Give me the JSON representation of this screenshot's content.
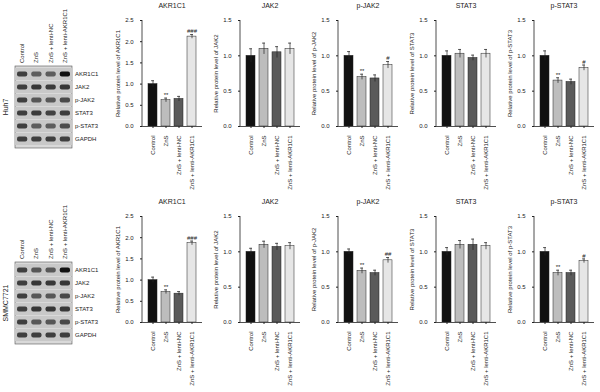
{
  "chart_data": [
    {
      "type": "bar",
      "title": "AKR1C1",
      "y_label": "Relative protein level of AKR1C1",
      "categories": [
        "Control",
        "ZnS",
        "ZnS + lenti-NC",
        "ZnS + lenti-AKR1C1"
      ],
      "values": [
        1.0,
        0.62,
        0.65,
        2.12
      ],
      "errors": [
        0.08,
        0.05,
        0.06,
        0.05
      ],
      "annotations": [
        null,
        "**",
        null,
        "###"
      ],
      "colors": [
        "#111111",
        "#bdbdbd",
        "#5a5a5a",
        "#e6e6e6"
      ],
      "ylim": [
        0,
        2.5
      ],
      "yticks": [
        {
          "value": 0,
          "label": "0.0"
        },
        {
          "value": 0.5,
          "label": "0.5"
        },
        {
          "value": 1,
          "label": "1.0"
        },
        {
          "value": 1.5,
          "label": "1.5"
        },
        {
          "value": 2,
          "label": "2.0"
        },
        {
          "value": 2.5,
          "label": "2.5"
        }
      ]
    },
    {
      "type": "bar",
      "title": "JAK2",
      "y_label": "Relative protein level of JAK2",
      "categories": [
        "Control",
        "ZnS",
        "ZnS + lenti-NC",
        "ZnS + lenti-AKR1C1"
      ],
      "values": [
        1.0,
        1.1,
        1.05,
        1.1
      ],
      "errors": [
        0.1,
        0.08,
        0.08,
        0.08
      ],
      "annotations": [
        null,
        null,
        null,
        null
      ],
      "colors": [
        "#111111",
        "#bdbdbd",
        "#5a5a5a",
        "#e6e6e6"
      ],
      "ylim": [
        0,
        1.5
      ],
      "yticks": [
        {
          "value": 0,
          "label": "0.0"
        },
        {
          "value": 0.5,
          "label": "0.5"
        },
        {
          "value": 1,
          "label": "1.0"
        },
        {
          "value": 1.5,
          "label": "1.5"
        }
      ]
    },
    {
      "type": "bar",
      "title": "p-JAK2",
      "y_label": "Relative protein level of p-JAK2",
      "categories": [
        "Control",
        "ZnS",
        "ZnS + lenti-NC",
        "ZnS + lenti-AKR1C1"
      ],
      "values": [
        1.0,
        0.7,
        0.68,
        0.87
      ],
      "errors": [
        0.06,
        0.04,
        0.05,
        0.05
      ],
      "annotations": [
        null,
        "**",
        null,
        "#"
      ],
      "colors": [
        "#111111",
        "#bdbdbd",
        "#5a5a5a",
        "#e6e6e6"
      ],
      "ylim": [
        0,
        1.5
      ],
      "yticks": [
        {
          "value": 0,
          "label": "0.0"
        },
        {
          "value": 0.5,
          "label": "0.5"
        },
        {
          "value": 1,
          "label": "1.0"
        },
        {
          "value": 1.5,
          "label": "1.5"
        }
      ]
    },
    {
      "type": "bar",
      "title": "STAT3",
      "y_label": "Relative protein level of STAT3",
      "categories": [
        "Control",
        "ZnS",
        "ZnS + lenti-NC",
        "ZnS + lenti-AKR1C1"
      ],
      "values": [
        1.0,
        1.03,
        0.97,
        1.03
      ],
      "errors": [
        0.07,
        0.06,
        0.04,
        0.06
      ],
      "annotations": [
        null,
        null,
        null,
        null
      ],
      "colors": [
        "#111111",
        "#bdbdbd",
        "#5a5a5a",
        "#e6e6e6"
      ],
      "ylim": [
        0,
        1.5
      ],
      "yticks": [
        {
          "value": 0,
          "label": "0.0"
        },
        {
          "value": 0.5,
          "label": "0.5"
        },
        {
          "value": 1,
          "label": "1.0"
        },
        {
          "value": 1.5,
          "label": "1.5"
        }
      ]
    },
    {
      "type": "bar",
      "title": "p-STAT3",
      "y_label": "Relative protein level of p-STAT3",
      "categories": [
        "Control",
        "ZnS",
        "ZnS + lenti-NC",
        "ZnS + lenti-AKR1C1"
      ],
      "values": [
        1.0,
        0.65,
        0.63,
        0.83
      ],
      "errors": [
        0.07,
        0.04,
        0.04,
        0.04
      ],
      "annotations": [
        null,
        "**",
        null,
        "#"
      ],
      "colors": [
        "#111111",
        "#bdbdbd",
        "#5a5a5a",
        "#e6e6e6"
      ],
      "ylim": [
        0,
        1.5
      ],
      "yticks": [
        {
          "value": 0,
          "label": "0.0"
        },
        {
          "value": 0.5,
          "label": "0.5"
        },
        {
          "value": 1,
          "label": "1.0"
        },
        {
          "value": 1.5,
          "label": "1.5"
        }
      ]
    },
    {
      "type": "bar",
      "title": "AKR1C1",
      "y_label": "Relative protein level of AKR1C1",
      "categories": [
        "Control",
        "ZnS",
        "ZnS + lenti-NC",
        "ZnS + lenti-AKR1C1"
      ],
      "values": [
        1.0,
        0.72,
        0.68,
        1.87
      ],
      "errors": [
        0.07,
        0.05,
        0.05,
        0.05
      ],
      "annotations": [
        null,
        "**",
        null,
        "###"
      ],
      "colors": [
        "#111111",
        "#bdbdbd",
        "#5a5a5a",
        "#e6e6e6"
      ],
      "ylim": [
        0,
        2.5
      ],
      "yticks": [
        {
          "value": 0,
          "label": "0.0"
        },
        {
          "value": 0.5,
          "label": "0.5"
        },
        {
          "value": 1,
          "label": "1.0"
        },
        {
          "value": 1.5,
          "label": "1.5"
        },
        {
          "value": 2,
          "label": "2.0"
        },
        {
          "value": 2.5,
          "label": "2.5"
        }
      ]
    },
    {
      "type": "bar",
      "title": "JAK2",
      "y_label": "Relative protein level of JAK2",
      "categories": [
        "Control",
        "ZnS",
        "ZnS + lenti-NC",
        "ZnS + lenti-AKR1C1"
      ],
      "values": [
        1.0,
        1.1,
        1.07,
        1.08
      ],
      "errors": [
        0.05,
        0.05,
        0.05,
        0.05
      ],
      "annotations": [
        null,
        null,
        null,
        null
      ],
      "colors": [
        "#111111",
        "#bdbdbd",
        "#5a5a5a",
        "#e6e6e6"
      ],
      "ylim": [
        0,
        1.5
      ],
      "yticks": [
        {
          "value": 0,
          "label": "0.0"
        },
        {
          "value": 0.5,
          "label": "0.5"
        },
        {
          "value": 1,
          "label": "1.0"
        },
        {
          "value": 1.5,
          "label": "1.5"
        }
      ]
    },
    {
      "type": "bar",
      "title": "p-JAK2",
      "y_label": "Relative protein level of p-JAK2",
      "categories": [
        "Control",
        "ZnS",
        "ZnS + lenti-NC",
        "ZnS + lenti-AKR1C1"
      ],
      "values": [
        1.0,
        0.73,
        0.7,
        0.88
      ],
      "errors": [
        0.04,
        0.04,
        0.04,
        0.04
      ],
      "annotations": [
        null,
        "**",
        null,
        "##"
      ],
      "colors": [
        "#111111",
        "#bdbdbd",
        "#5a5a5a",
        "#e6e6e6"
      ],
      "ylim": [
        0,
        1.5
      ],
      "yticks": [
        {
          "value": 0,
          "label": "0.0"
        },
        {
          "value": 0.5,
          "label": "0.5"
        },
        {
          "value": 1,
          "label": "1.0"
        },
        {
          "value": 1.5,
          "label": "1.5"
        }
      ]
    },
    {
      "type": "bar",
      "title": "STAT3",
      "y_label": "Relative protein level of STAT3",
      "categories": [
        "Control",
        "ZnS",
        "ZnS + lenti-NC",
        "ZnS + lenti-AKR1C1"
      ],
      "values": [
        1.0,
        1.1,
        1.1,
        1.08
      ],
      "errors": [
        0.06,
        0.06,
        0.08,
        0.05
      ],
      "annotations": [
        null,
        null,
        null,
        null
      ],
      "colors": [
        "#111111",
        "#bdbdbd",
        "#5a5a5a",
        "#e6e6e6"
      ],
      "ylim": [
        0,
        1.5
      ],
      "yticks": [
        {
          "value": 0,
          "label": "0.0"
        },
        {
          "value": 0.5,
          "label": "0.5"
        },
        {
          "value": 1,
          "label": "1.0"
        },
        {
          "value": 1.5,
          "label": "1.5"
        }
      ]
    },
    {
      "type": "bar",
      "title": "p-STAT3",
      "y_label": "Relative protein level of p-STAT3",
      "categories": [
        "Control",
        "ZnS",
        "ZnS + lenti-NC",
        "ZnS + lenti-AKR1C1"
      ],
      "values": [
        1.0,
        0.7,
        0.7,
        0.87
      ],
      "errors": [
        0.06,
        0.04,
        0.04,
        0.03
      ],
      "annotations": [
        null,
        "**",
        null,
        "#"
      ],
      "colors": [
        "#111111",
        "#bdbdbd",
        "#5a5a5a",
        "#e6e6e6"
      ],
      "ylim": [
        0,
        1.5
      ],
      "yticks": [
        {
          "value": 0,
          "label": "0.0"
        },
        {
          "value": 0.5,
          "label": "0.5"
        },
        {
          "value": 1,
          "label": "1.0"
        },
        {
          "value": 1.5,
          "label": "1.5"
        }
      ]
    }
  ],
  "blots": [
    {
      "cell_line": "Huh7",
      "lanes": [
        "Control",
        "ZnS",
        "ZnS + lenti-NC",
        "ZnS + lenti-AKR1C1"
      ],
      "bands": [
        "AKR1C1",
        "JAK2",
        "p-JAK2",
        "STAT3",
        "p-STAT3",
        "GAPDH"
      ]
    },
    {
      "cell_line": "SMMC7721",
      "lanes": [
        "Control",
        "ZnS",
        "ZnS + lenti-NC",
        "ZnS + lenti-AKR1C1"
      ],
      "bands": [
        "AKR1C1",
        "JAK2",
        "p-JAK2",
        "STAT3",
        "p-STAT3",
        "GAPDH"
      ]
    }
  ]
}
